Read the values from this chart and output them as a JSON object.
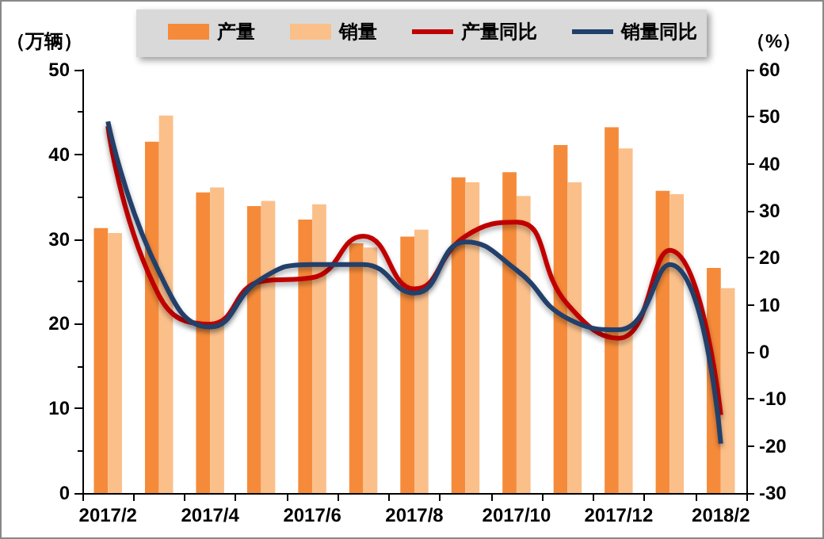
{
  "chart_data": {
    "type": "bar",
    "ylabel": "（万辆）",
    "y2label": "（%）",
    "categories": [
      "2017/2",
      null,
      "2017/4",
      null,
      "2017/6",
      null,
      "2017/8",
      null,
      "2017/10",
      null,
      "2017/12",
      null,
      "2018/2"
    ],
    "series": [
      {
        "name": "产量",
        "color": "#f58b3a",
        "values": [
          31.3,
          41.5,
          35.5,
          33.9,
          32.3,
          29.5,
          30.3,
          37.3,
          37.9,
          41.1,
          43.2,
          35.7,
          26.6
        ]
      },
      {
        "name": "销量",
        "color": "#fbbf8a",
        "values": [
          30.7,
          44.6,
          36.1,
          34.5,
          34.1,
          29.0,
          31.1,
          36.7,
          35.1,
          36.7,
          40.7,
          35.3,
          24.2
        ]
      },
      {
        "name": "产量同比",
        "type": "line",
        "axis": "y2",
        "color": "#c00000",
        "values": [
          48,
          12,
          5.9,
          15,
          15.8,
          24.6,
          13.4,
          24.6,
          27.6,
          10.1,
          2.9,
          21.6,
          -13.4
        ]
      },
      {
        "name": "销量同比",
        "type": "line",
        "axis": "y2",
        "color": "#203f6b",
        "values": [
          49,
          17,
          5.3,
          15.5,
          18.6,
          18.6,
          12.5,
          23.4,
          17.4,
          7.1,
          4.7,
          18.6,
          -19.5
        ]
      }
    ],
    "ylim": [
      0,
      50
    ],
    "yticks": [
      0,
      10,
      20,
      30,
      40,
      50
    ],
    "y2lim": [
      -30,
      60
    ],
    "y2ticks": [
      -30,
      -20,
      -10,
      0,
      10,
      20,
      30,
      40,
      50,
      60
    ],
    "grid": false,
    "legend": "top",
    "marker": "none",
    "line_style": "solid"
  }
}
